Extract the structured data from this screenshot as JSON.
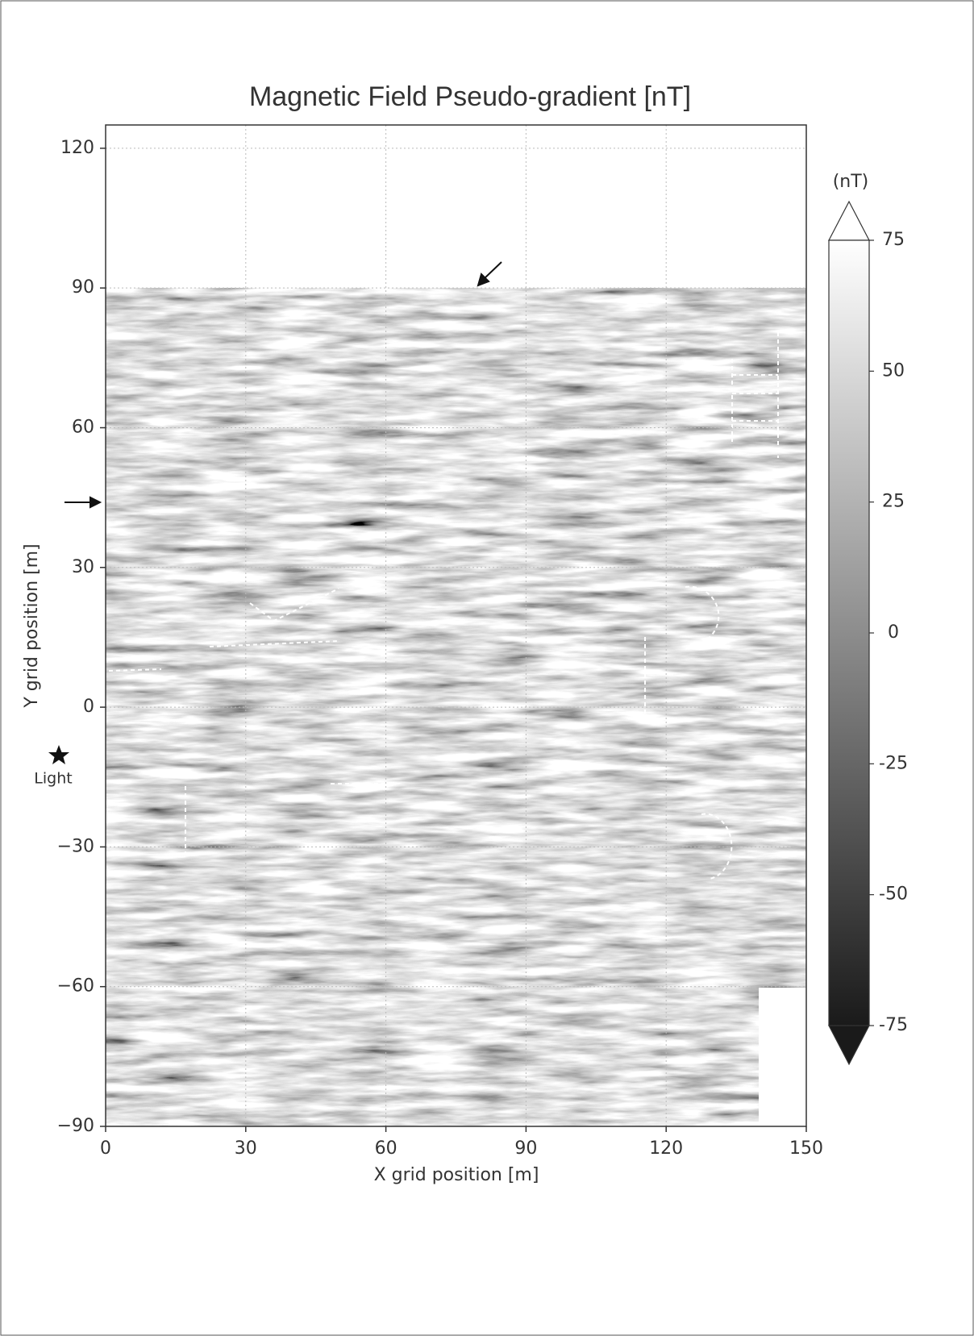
{
  "chart_data": {
    "type": "image",
    "title": "Magnetic Field Pseudo-gradient [nT]",
    "xlabel": "X grid position [m]",
    "ylabel": "Y grid position [m]",
    "xlim": [
      0,
      150
    ],
    "xticks": [
      0,
      30,
      60,
      90,
      120,
      150
    ],
    "ylim": [
      -90,
      125
    ],
    "yticks": [
      {
        "value": -90,
        "label": "−90"
      },
      {
        "value": -60,
        "label": "−60"
      },
      {
        "value": -30,
        "label": "−30"
      },
      0,
      30,
      60,
      90,
      120
    ],
    "grid": true,
    "colormap": "gray",
    "colorbar": {
      "label": "(nT)",
      "lim": [
        -75,
        75
      ],
      "ticks": [
        75,
        50,
        25,
        0,
        -25,
        -50,
        -75
      ],
      "extend": "both"
    },
    "annotations": [
      "Light"
    ]
  }
}
